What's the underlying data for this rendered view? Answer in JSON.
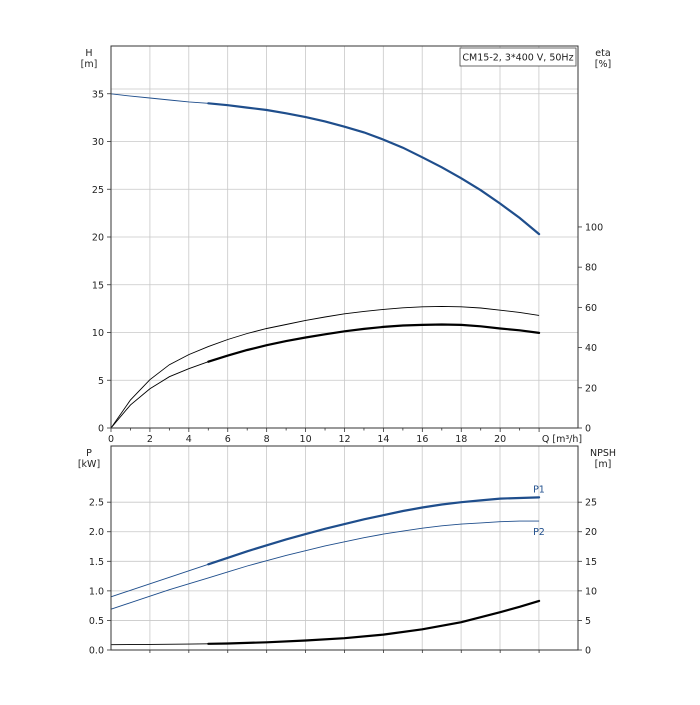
{
  "chart_data": [
    {
      "type": "line",
      "panel": "head-efficiency",
      "title_box": "CM15-2, 3*400 V, 50Hz",
      "left_axis": {
        "label": "H",
        "unit": "[m]",
        "ticks": [
          0,
          5,
          10,
          15,
          20,
          25,
          30,
          35
        ],
        "range": [
          0,
          40
        ]
      },
      "right_axis": {
        "label": "eta",
        "unit": "[%]",
        "ticks": [
          0,
          20,
          40,
          60,
          80,
          100
        ],
        "range": [
          0,
          190
        ]
      },
      "x_axis": {
        "label": "Q [m³/h]",
        "ticks": [
          0,
          2,
          4,
          6,
          8,
          10,
          12,
          14,
          16,
          18,
          20
        ],
        "range": [
          0,
          24
        ]
      },
      "grid": true,
      "series": [
        {
          "key": "head",
          "axis": "left",
          "color": "#1f4e8c",
          "x": [
            0,
            1,
            2,
            3,
            4,
            5,
            6,
            7,
            8,
            9,
            10,
            11,
            12,
            13,
            14,
            15,
            16,
            17,
            18,
            19,
            20,
            21,
            22
          ],
          "y": [
            35.0,
            34.75,
            34.55,
            34.35,
            34.15,
            34.0,
            33.8,
            33.55,
            33.3,
            32.95,
            32.55,
            32.1,
            31.55,
            30.95,
            30.2,
            29.35,
            28.35,
            27.3,
            26.15,
            24.9,
            23.5,
            22.0,
            20.3
          ],
          "bold_from": 5
        },
        {
          "key": "eta-thin",
          "axis": "right",
          "color": "#000000",
          "x": [
            0,
            1,
            2,
            3,
            4,
            5,
            6,
            7,
            8,
            9,
            10,
            11,
            12,
            13,
            14,
            15,
            16,
            17,
            18,
            19,
            20,
            21,
            22
          ],
          "y": [
            0,
            14,
            24,
            31.5,
            36.5,
            40.5,
            44,
            47,
            49.5,
            51.5,
            53.5,
            55.2,
            56.8,
            58,
            59,
            59.8,
            60.3,
            60.5,
            60.3,
            59.7,
            58.6,
            57.5,
            56
          ]
        },
        {
          "key": "eta-bold",
          "axis": "right",
          "color": "#000000",
          "x": [
            0,
            1,
            2,
            3,
            4,
            5,
            6,
            7,
            8,
            9,
            10,
            11,
            12,
            13,
            14,
            15,
            16,
            17,
            18,
            19,
            20,
            21,
            22
          ],
          "y": [
            0,
            11.5,
            19.5,
            25.5,
            29.5,
            33,
            36,
            38.8,
            41.2,
            43.2,
            45,
            46.6,
            48.1,
            49.3,
            50.3,
            51,
            51.3,
            51.5,
            51.3,
            50.6,
            49.5,
            48.6,
            47.3
          ],
          "bold_from": 5
        }
      ]
    },
    {
      "type": "line",
      "panel": "power-npsh",
      "left_axis": {
        "label": "P",
        "unit": "[kW]",
        "ticks": [
          0.0,
          0.5,
          1.0,
          1.5,
          2.0,
          2.5
        ],
        "range": [
          0,
          3.45
        ]
      },
      "right_axis": {
        "label": "NPSH",
        "unit": "[m]",
        "ticks": [
          0,
          5,
          10,
          15,
          20,
          25
        ],
        "range": [
          0,
          34.5
        ]
      },
      "x_axis": {
        "range": [
          0,
          24
        ]
      },
      "grid": true,
      "series": [
        {
          "key": "p1",
          "name": "P1",
          "axis": "left",
          "color": "#1f4e8c",
          "x": [
            0,
            1,
            2,
            3,
            4,
            5,
            6,
            7,
            8,
            9,
            10,
            11,
            12,
            13,
            14,
            15,
            16,
            17,
            18,
            19,
            20,
            21,
            22
          ],
          "y": [
            0.9,
            1.01,
            1.12,
            1.23,
            1.34,
            1.45,
            1.56,
            1.67,
            1.77,
            1.87,
            1.96,
            2.05,
            2.13,
            2.21,
            2.28,
            2.35,
            2.41,
            2.46,
            2.5,
            2.53,
            2.56,
            2.57,
            2.58
          ],
          "bold_from": 5
        },
        {
          "key": "p2",
          "name": "P2",
          "axis": "left",
          "color": "#1f4e8c",
          "x": [
            0,
            1,
            2,
            3,
            4,
            5,
            6,
            7,
            8,
            9,
            10,
            11,
            12,
            13,
            14,
            15,
            16,
            17,
            18,
            19,
            20,
            21,
            22
          ],
          "y": [
            0.69,
            0.8,
            0.91,
            1.02,
            1.12,
            1.22,
            1.32,
            1.42,
            1.51,
            1.6,
            1.68,
            1.76,
            1.83,
            1.9,
            1.96,
            2.01,
            2.06,
            2.1,
            2.13,
            2.15,
            2.17,
            2.18,
            2.18
          ]
        },
        {
          "key": "npsh",
          "axis": "right",
          "color": "#000000",
          "x": [
            0,
            2,
            4,
            5,
            6,
            8,
            10,
            12,
            14,
            16,
            18,
            20,
            21,
            22
          ],
          "y": [
            0.9,
            0.95,
            1.0,
            1.05,
            1.1,
            1.3,
            1.6,
            2.0,
            2.6,
            3.5,
            4.7,
            6.4,
            7.3,
            8.3
          ],
          "bold_from": 5
        }
      ]
    }
  ]
}
